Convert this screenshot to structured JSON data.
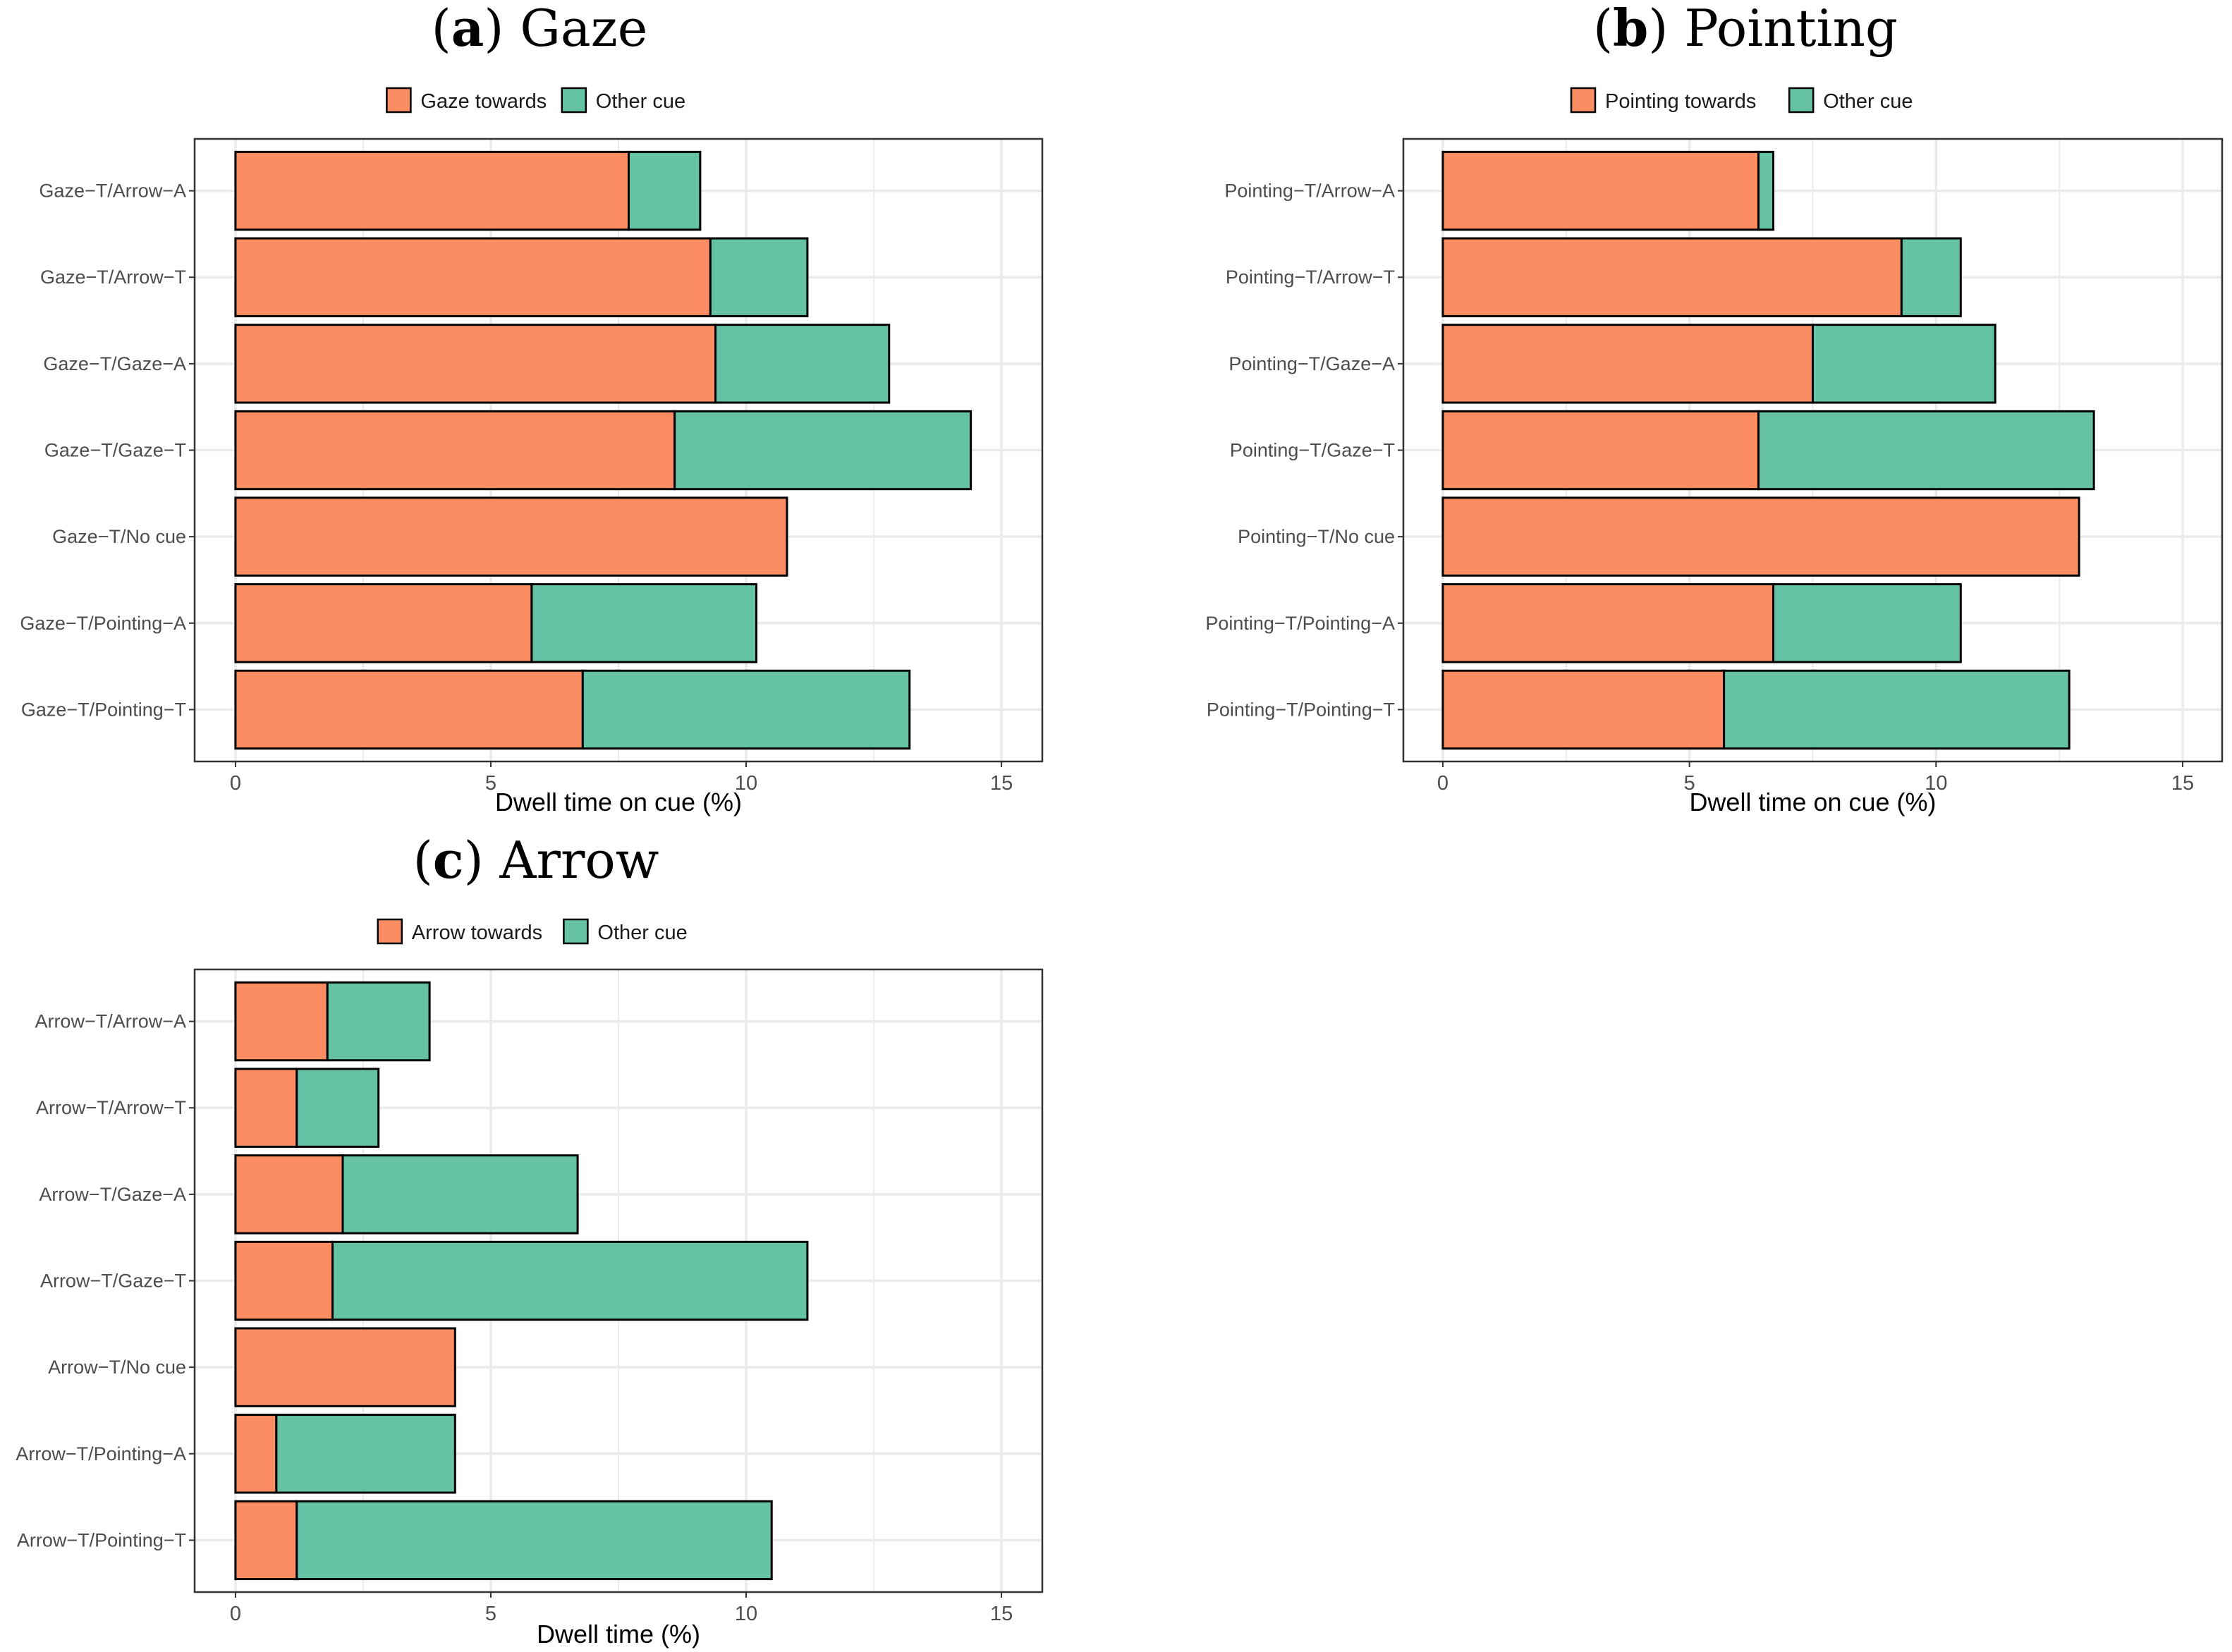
{
  "chart_data": [
    {
      "type": "bar",
      "orientation": "horizontal",
      "stacked": true,
      "title_letter": "a",
      "title_text": "Gaze",
      "title": "(a) Gaze",
      "categories": [
        "Gaze−T/Arrow−A",
        "Gaze−T/Arrow−T",
        "Gaze−T/Gaze−A",
        "Gaze−T/Gaze−T",
        "Gaze−T/No cue",
        "Gaze−T/Pointing−A",
        "Gaze−T/Pointing−T"
      ],
      "series": [
        {
          "name": "Gaze towards",
          "values": [
            7.7,
            9.3,
            9.4,
            8.6,
            10.8,
            5.8,
            6.8
          ]
        },
        {
          "name": "Other cue",
          "values": [
            1.4,
            1.9,
            3.4,
            5.8,
            0,
            4.4,
            6.4
          ]
        }
      ],
      "xlabel": "Dwell time on cue (%)",
      "ylabel": "",
      "xlim": [
        -0.8,
        15.8
      ],
      "xticks": [
        "0",
        "5",
        "10",
        "15"
      ],
      "grid": true,
      "legend_position": "top"
    },
    {
      "type": "bar",
      "orientation": "horizontal",
      "stacked": true,
      "title_letter": "b",
      "title_text": "Pointing",
      "title": "(b) Pointing",
      "categories": [
        "Pointing−T/Arrow−A",
        "Pointing−T/Arrow−T",
        "Pointing−T/Gaze−A",
        "Pointing−T/Gaze−T",
        "Pointing−T/No cue",
        "Pointing−T/Pointing−A",
        "Pointing−T/Pointing−T"
      ],
      "series": [
        {
          "name": "Pointing towards",
          "values": [
            6.4,
            9.3,
            7.5,
            6.4,
            12.9,
            6.7,
            5.7
          ]
        },
        {
          "name": "Other cue",
          "values": [
            0.3,
            1.2,
            3.7,
            6.8,
            0,
            3.8,
            7.0
          ]
        }
      ],
      "xlabel": "Dwell time on cue (%)",
      "ylabel": "",
      "xlim": [
        -0.8,
        15.8
      ],
      "xticks": [
        "0",
        "5",
        "10",
        "15"
      ],
      "grid": true,
      "legend_position": "top"
    },
    {
      "type": "bar",
      "orientation": "horizontal",
      "stacked": true,
      "title_letter": "c",
      "title_text": "Arrow",
      "title": "(c) Arrow",
      "categories": [
        "Arrow−T/Arrow−A",
        "Arrow−T/Arrow−T",
        "Arrow−T/Gaze−A",
        "Arrow−T/Gaze−T",
        "Arrow−T/No cue",
        "Arrow−T/Pointing−A",
        "Arrow−T/Pointing−T"
      ],
      "series": [
        {
          "name": "Arrow towards",
          "values": [
            1.8,
            1.2,
            2.1,
            1.9,
            4.3,
            0.8,
            1.2
          ]
        },
        {
          "name": "Other cue",
          "values": [
            2.0,
            1.6,
            4.6,
            9.3,
            0,
            3.5,
            9.3
          ]
        }
      ],
      "xlabel": "Dwell time (%)",
      "ylabel": "",
      "xlim": [
        -0.8,
        15.8
      ],
      "xticks": [
        "0",
        "5",
        "10",
        "15"
      ],
      "grid": true,
      "legend_position": "top"
    }
  ],
  "colors": {
    "towards": "#fc8d62",
    "other": "#66c2a5",
    "grid": "#ebebeb",
    "panel_border": "#333333",
    "bar_outline": "#000000"
  }
}
